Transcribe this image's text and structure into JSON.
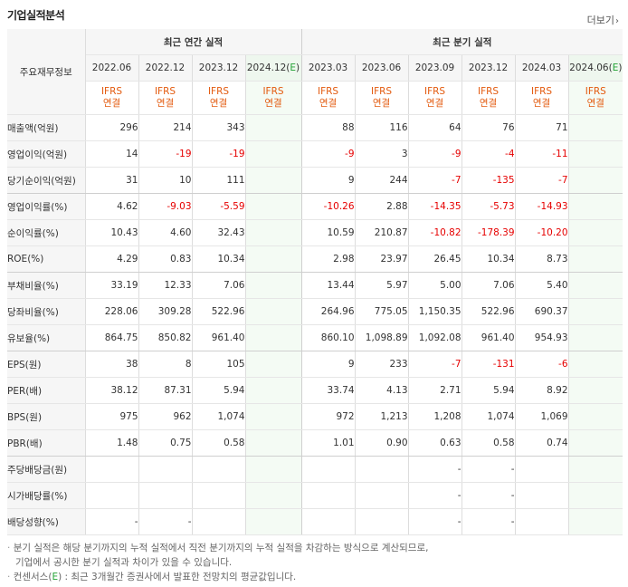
{
  "title": "기업실적분석",
  "more_label": "더보기",
  "header": {
    "row_label": "주요재무정보",
    "annual_group": "최근 연간 실적",
    "quarter_group": "최근 분기 실적",
    "annual_periods": [
      "2022.06",
      "2022.12",
      "2023.12",
      "2024.12(E)"
    ],
    "quarter_periods": [
      "2023.03",
      "2023.06",
      "2023.09",
      "2023.12",
      "2024.03",
      "2024.06(E)"
    ],
    "basis_top": "IFRS",
    "basis_bottom": "연결"
  },
  "rows": [
    {
      "label": "매출액(억원)",
      "annual": [
        "296",
        "214",
        "343",
        ""
      ],
      "quarter": [
        "88",
        "116",
        "64",
        "76",
        "71",
        ""
      ]
    },
    {
      "label": "영업이익(억원)",
      "annual": [
        "14",
        "-19",
        "-19",
        ""
      ],
      "quarter": [
        "-9",
        "3",
        "-9",
        "-4",
        "-11",
        ""
      ]
    },
    {
      "label": "당기순이익(억원)",
      "annual": [
        "31",
        "10",
        "111",
        ""
      ],
      "quarter": [
        "9",
        "244",
        "-7",
        "-135",
        "-7",
        ""
      ]
    },
    {
      "label": "영업이익률(%)",
      "annual": [
        "4.62",
        "-9.03",
        "-5.59",
        ""
      ],
      "quarter": [
        "-10.26",
        "2.88",
        "-14.35",
        "-5.73",
        "-14.93",
        ""
      ]
    },
    {
      "label": "순이익률(%)",
      "annual": [
        "10.43",
        "4.60",
        "32.43",
        ""
      ],
      "quarter": [
        "10.59",
        "210.87",
        "-10.82",
        "-178.39",
        "-10.20",
        ""
      ]
    },
    {
      "label": "ROE(%)",
      "annual": [
        "4.29",
        "0.83",
        "10.34",
        ""
      ],
      "quarter": [
        "2.98",
        "23.97",
        "26.45",
        "10.34",
        "8.73",
        ""
      ]
    },
    {
      "label": "부채비율(%)",
      "annual": [
        "33.19",
        "12.33",
        "7.06",
        ""
      ],
      "quarter": [
        "13.44",
        "5.97",
        "5.00",
        "7.06",
        "5.40",
        ""
      ]
    },
    {
      "label": "당좌비율(%)",
      "annual": [
        "228.06",
        "309.28",
        "522.96",
        ""
      ],
      "quarter": [
        "264.96",
        "775.05",
        "1,150.35",
        "522.96",
        "690.37",
        ""
      ]
    },
    {
      "label": "유보율(%)",
      "annual": [
        "864.75",
        "850.82",
        "961.40",
        ""
      ],
      "quarter": [
        "860.10",
        "1,098.89",
        "1,092.08",
        "961.40",
        "954.93",
        ""
      ]
    },
    {
      "label": "EPS(원)",
      "annual": [
        "38",
        "8",
        "105",
        ""
      ],
      "quarter": [
        "9",
        "233",
        "-7",
        "-131",
        "-6",
        ""
      ]
    },
    {
      "label": "PER(배)",
      "annual": [
        "38.12",
        "87.31",
        "5.94",
        ""
      ],
      "quarter": [
        "33.74",
        "4.13",
        "2.71",
        "5.94",
        "8.92",
        ""
      ]
    },
    {
      "label": "BPS(원)",
      "annual": [
        "975",
        "962",
        "1,074",
        ""
      ],
      "quarter": [
        "972",
        "1,213",
        "1,208",
        "1,074",
        "1,069",
        ""
      ]
    },
    {
      "label": "PBR(배)",
      "annual": [
        "1.48",
        "0.75",
        "0.58",
        ""
      ],
      "quarter": [
        "1.01",
        "0.90",
        "0.63",
        "0.58",
        "0.74",
        ""
      ]
    },
    {
      "label": "주당배당금(원)",
      "annual": [
        "",
        "",
        "",
        ""
      ],
      "quarter": [
        "",
        "",
        "-",
        "-",
        "",
        ""
      ]
    },
    {
      "label": "시가배당률(%)",
      "annual": [
        "",
        "",
        "",
        ""
      ],
      "quarter": [
        "",
        "",
        "-",
        "-",
        "",
        ""
      ]
    },
    {
      "label": "배당성향(%)",
      "annual": [
        "-",
        "-",
        "",
        ""
      ],
      "quarter": [
        "",
        "",
        "-",
        "-",
        "",
        ""
      ]
    }
  ],
  "notes": [
    "분기 실적은 해당 분기까지의 누적 실적에서 직전 분기까지의 누적 실적을 차감하는 방식으로 계산되므로,",
    "기업에서 공시한 분기 실적과 차이가 있을 수 있습니다.",
    "컨센서스(E) : 최근 3개월간 증권사에서 발표한 전망치의 평균값입니다."
  ]
}
